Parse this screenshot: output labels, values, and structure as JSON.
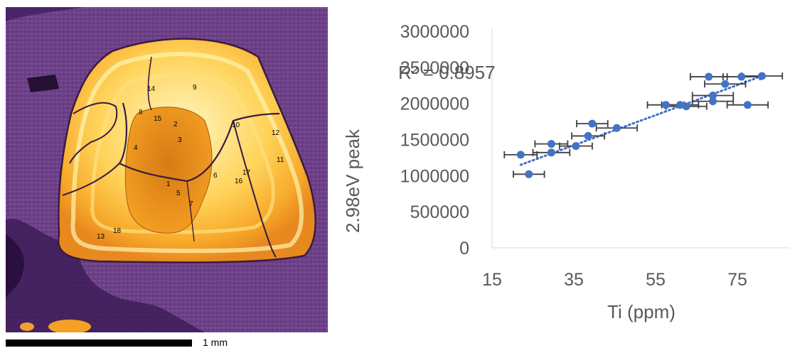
{
  "scale_bar": {
    "label": "1 mm"
  },
  "point_labels": [
    "1",
    "2",
    "3",
    "4",
    "5",
    "6",
    "7",
    "8",
    "9",
    "10",
    "11",
    "12",
    "13",
    "14",
    "15",
    "16",
    "17",
    "18"
  ],
  "chart_data": {
    "type": "scatter",
    "xlabel": "Ti (ppm)",
    "ylabel": "2.98eV peak",
    "xlim": [
      15,
      87
    ],
    "ylim": [
      0,
      3000000
    ],
    "x_ticks": [
      15,
      35,
      55,
      75
    ],
    "y_ticks": [
      0,
      500000,
      1000000,
      1500000,
      2000000,
      2500000,
      3000000
    ],
    "y_tick_labels": [
      "0",
      "500000",
      "1000000",
      "1500000",
      "2000000",
      "2500000",
      "3000000"
    ],
    "annotation": "R² = 0.8957",
    "marker_color": "#4472C4",
    "errorbar_color": "#404040",
    "trendline": {
      "style": "dotted linear",
      "color": "#4472C4",
      "from": [
        22,
        1150000
      ],
      "to": [
        81,
        2380000
      ]
    },
    "points": [
      {
        "x": 24,
        "y": 1020000,
        "xerr": 3.8
      },
      {
        "x": 22,
        "y": 1290000,
        "xerr": 4.0
      },
      {
        "x": 29.5,
        "y": 1320000,
        "xerr": 4.5
      },
      {
        "x": 29.5,
        "y": 1440000,
        "xerr": 4.0
      },
      {
        "x": 35.5,
        "y": 1410000,
        "xerr": 4.0
      },
      {
        "x": 38.5,
        "y": 1550000,
        "xerr": 4.0
      },
      {
        "x": 39.5,
        "y": 1720000,
        "xerr": 3.8
      },
      {
        "x": 45.5,
        "y": 1660000,
        "xerr": 5.0
      },
      {
        "x": 57.5,
        "y": 1980000,
        "xerr": 4.5
      },
      {
        "x": 61,
        "y": 1980000,
        "xerr": 4.5
      },
      {
        "x": 62.5,
        "y": 1960000,
        "xerr": 5.0
      },
      {
        "x": 69,
        "y": 2030000,
        "xerr": 5.0
      },
      {
        "x": 69,
        "y": 2110000,
        "xerr": 5.0
      },
      {
        "x": 68,
        "y": 2370000,
        "xerr": 4.5
      },
      {
        "x": 72,
        "y": 2270000,
        "xerr": 5.0
      },
      {
        "x": 76,
        "y": 2370000,
        "xerr": 4.5
      },
      {
        "x": 77.5,
        "y": 1980000,
        "xerr": 5.0
      },
      {
        "x": 81,
        "y": 2380000,
        "xerr": 5.0
      }
    ]
  }
}
